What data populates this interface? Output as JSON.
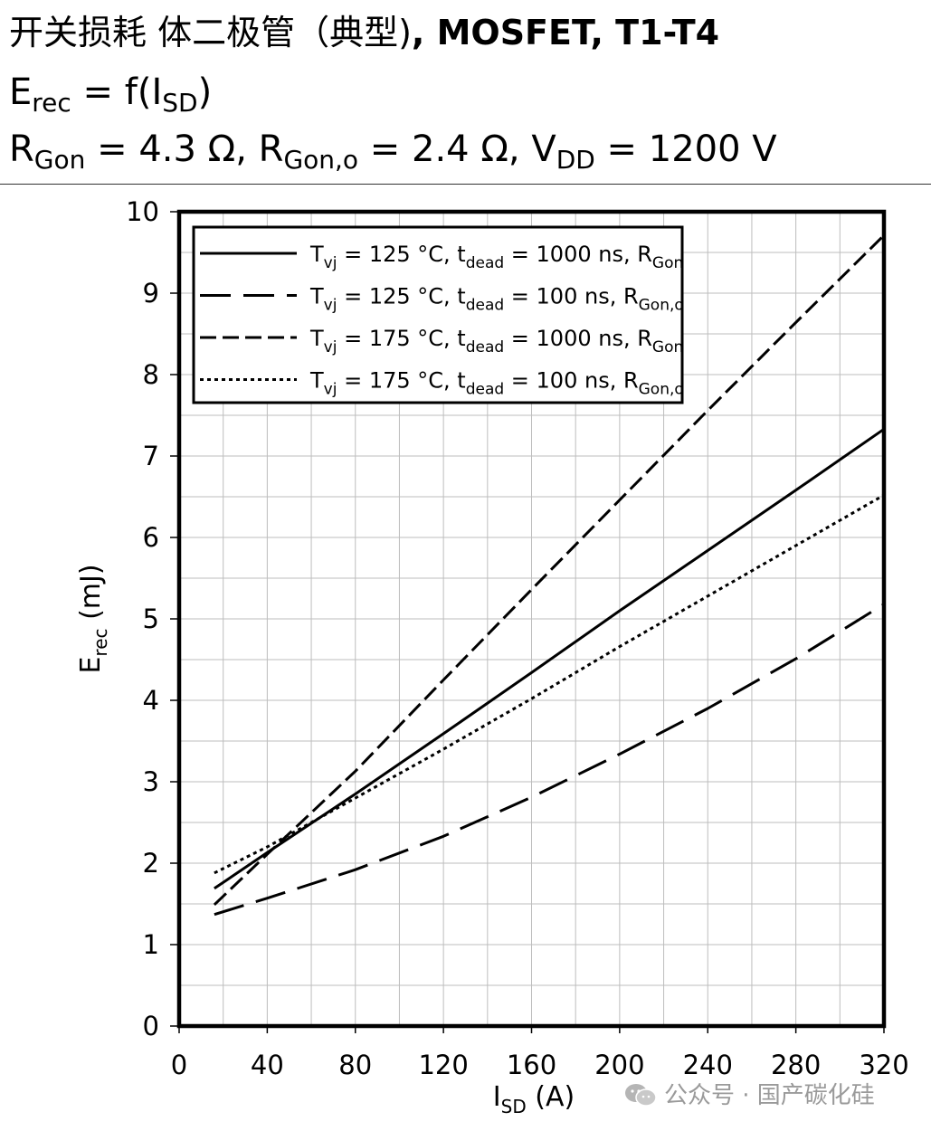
{
  "header": {
    "line1_cn": "开关损耗 体二极管（典型)",
    "line1_en": ", MOSFET, T1-T4",
    "line2": {
      "main": "E",
      "sub": "rec",
      "tail": " = f(I",
      "sub2": "SD",
      "tail2": ")"
    },
    "line3": {
      "p1": "R",
      "s1": "Gon",
      "p2": " = 4.3 Ω, R",
      "s2": "Gon,o",
      "p3": " = 2.4 Ω, V",
      "s3": "DD",
      "p4": " = 1200 V"
    }
  },
  "watermark": {
    "text": "公众号 · 国产碳化硅",
    "icon": "wechat-icon"
  },
  "chart_data": {
    "type": "line",
    "xlabel": {
      "main": "I",
      "sub": "SD",
      "unit": " (A)"
    },
    "ylabel": {
      "main": "E",
      "sub": "rec",
      "unit": " (mJ)"
    },
    "xlim": [
      0,
      320
    ],
    "ylim": [
      0,
      10
    ],
    "xticks": [
      0,
      40,
      80,
      120,
      160,
      200,
      240,
      280,
      320
    ],
    "yticks": [
      0,
      1,
      2,
      3,
      4,
      5,
      6,
      7,
      8,
      9,
      10
    ],
    "grid": true,
    "legend_position": "top-left",
    "series": [
      {
        "label_parts": [
          "T",
          "vj",
          " = 125 °C, t",
          "dead",
          " = 1000 ns, R",
          "Gon"
        ],
        "style": "solid",
        "x": [
          16,
          40,
          80,
          120,
          160,
          200,
          240,
          280,
          320
        ],
        "y": [
          1.69,
          2.13,
          2.85,
          3.59,
          4.34,
          5.1,
          5.84,
          6.58,
          7.33
        ]
      },
      {
        "label_parts": [
          "T",
          "vj",
          " = 125 °C, t",
          "dead",
          " = 100 ns, R",
          "Gon,o"
        ],
        "style": "long-dash",
        "x": [
          16,
          40,
          80,
          120,
          160,
          200,
          240,
          280,
          320
        ],
        "y": [
          1.37,
          1.57,
          1.92,
          2.33,
          2.81,
          3.34,
          3.9,
          4.51,
          5.18
        ]
      },
      {
        "label_parts": [
          "T",
          "vj",
          " = 175 °C, t",
          "dead",
          " = 1000 ns, R",
          "Gon"
        ],
        "style": "dash",
        "x": [
          16,
          40,
          80,
          120,
          160,
          200,
          240,
          280,
          320
        ],
        "y": [
          1.49,
          2.11,
          3.13,
          4.25,
          5.36,
          6.46,
          7.56,
          8.64,
          9.71
        ]
      },
      {
        "label_parts": [
          "T",
          "vj",
          " = 175 °C, t",
          "dead",
          " = 100 ns, R",
          "Gon,o"
        ],
        "style": "dot",
        "x": [
          16,
          40,
          80,
          120,
          160,
          200,
          240,
          280,
          320
        ],
        "y": [
          1.88,
          2.2,
          2.8,
          3.4,
          4.02,
          4.66,
          5.28,
          5.9,
          6.52
        ]
      }
    ]
  }
}
